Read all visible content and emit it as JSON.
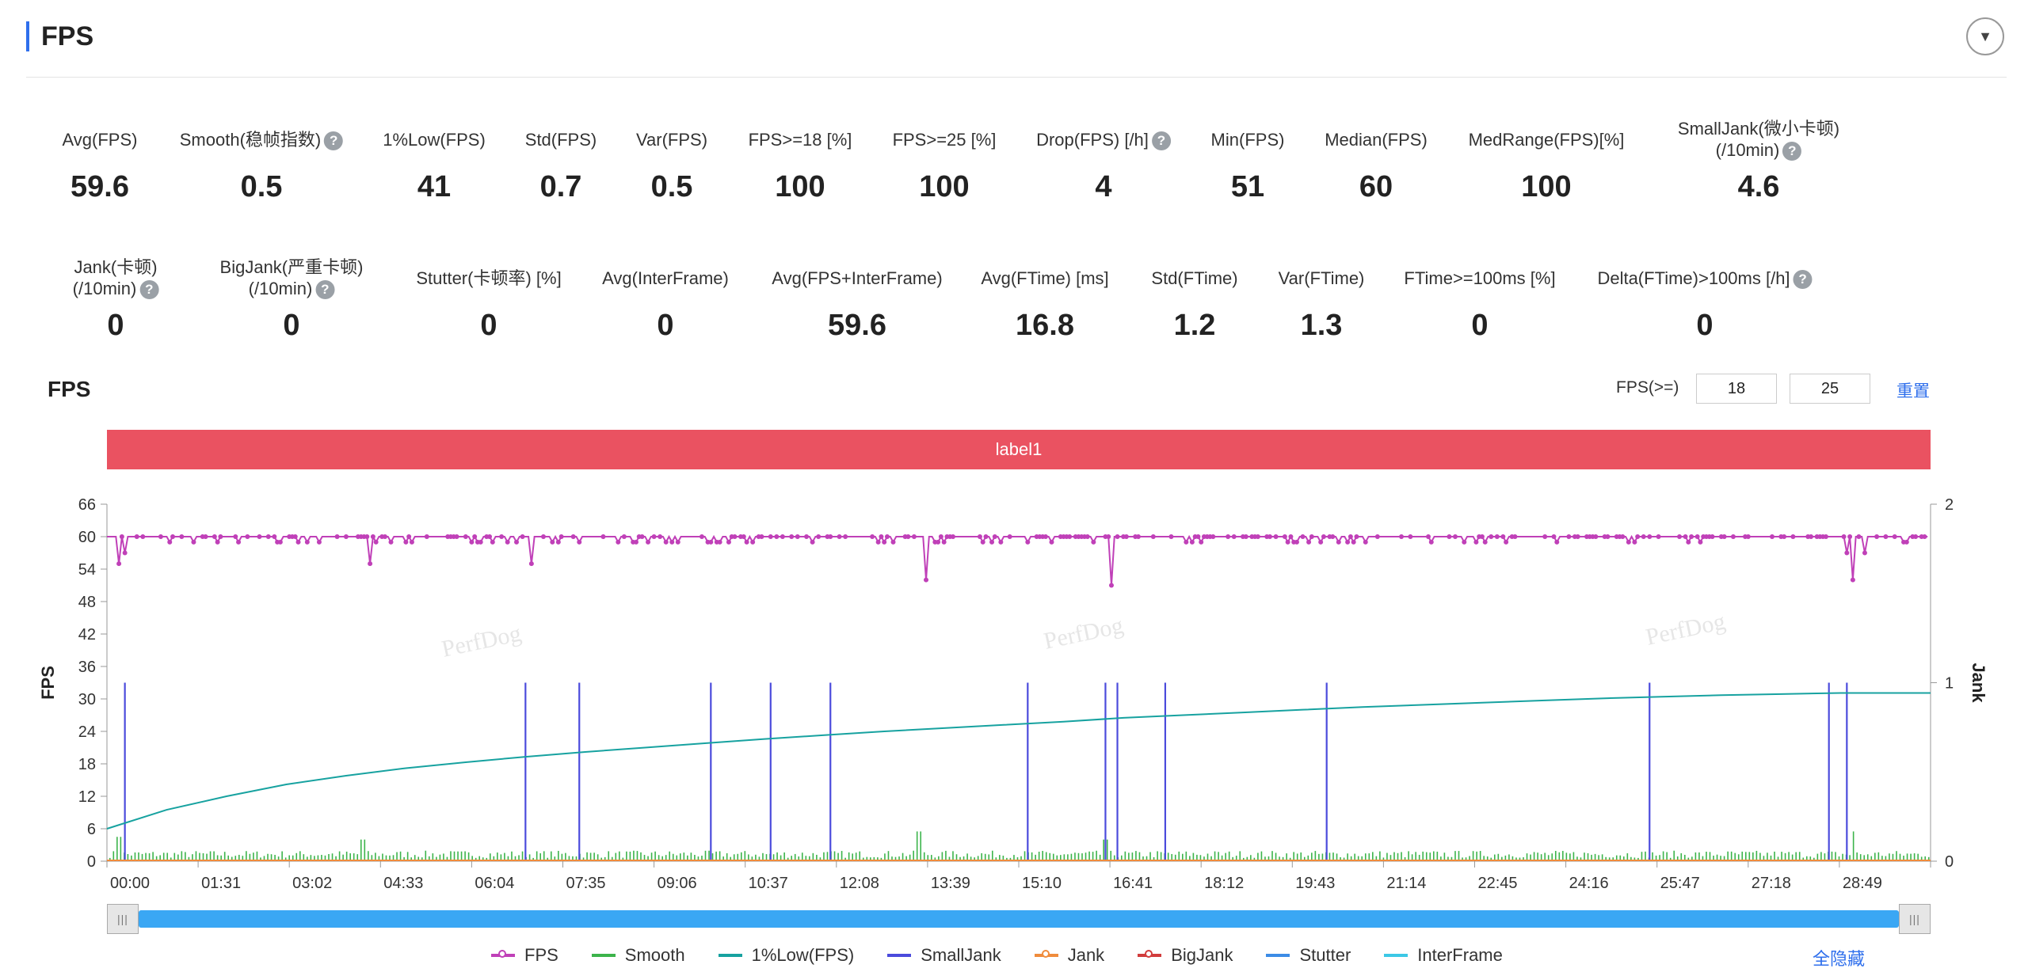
{
  "header": {
    "title": "FPS",
    "collapse_icon": "chevron-down-icon"
  },
  "metrics_row1": [
    {
      "label": "Avg(FPS)",
      "value": "59.6",
      "help": false
    },
    {
      "label": "Smooth(稳帧指数)",
      "value": "0.5",
      "help": true
    },
    {
      "label": "1%Low(FPS)",
      "value": "41",
      "help": false
    },
    {
      "label": "Std(FPS)",
      "value": "0.7",
      "help": false
    },
    {
      "label": "Var(FPS)",
      "value": "0.5",
      "help": false
    },
    {
      "label": "FPS>=18 [%]",
      "value": "100",
      "help": false
    },
    {
      "label": "FPS>=25 [%]",
      "value": "100",
      "help": false
    },
    {
      "label": "Drop(FPS) [/h]",
      "value": "4",
      "help": true
    },
    {
      "label": "Min(FPS)",
      "value": "51",
      "help": false
    },
    {
      "label": "Median(FPS)",
      "value": "60",
      "help": false
    },
    {
      "label": "MedRange(FPS)[%]",
      "value": "100",
      "help": false
    },
    {
      "label": "SmallJank(微小卡顿)",
      "label2": "(/10min)",
      "value": "4.6",
      "help": true
    }
  ],
  "metrics_row2": [
    {
      "label": "Jank(卡顿)",
      "label2": "(/10min)",
      "value": "0",
      "help": true
    },
    {
      "label": "BigJank(严重卡顿)",
      "label2": "(/10min)",
      "value": "0",
      "help": true
    },
    {
      "label": "Stutter(卡顿率) [%]",
      "value": "0",
      "help": false
    },
    {
      "label": "Avg(InterFrame)",
      "value": "0",
      "help": false
    },
    {
      "label": "Avg(FPS+InterFrame)",
      "value": "59.6",
      "help": false
    },
    {
      "label": "Avg(FTime) [ms]",
      "value": "16.8",
      "help": false
    },
    {
      "label": "Std(FTime)",
      "value": "1.2",
      "help": false
    },
    {
      "label": "Var(FTime)",
      "value": "1.3",
      "help": false
    },
    {
      "label": "FTime>=100ms [%]",
      "value": "0",
      "help": false
    },
    {
      "label": "Delta(FTime)>100ms [/h]",
      "value": "0",
      "help": true
    }
  ],
  "chart_controls": {
    "title": "FPS",
    "threshold_label": "FPS(>=)",
    "threshold_1": "18",
    "threshold_2": "25",
    "reset_label": "重置"
  },
  "label_band": "label1",
  "watermark": "PerfDog",
  "legend": {
    "items": [
      {
        "name": "FPS",
        "color": "#c040b8",
        "marker": true
      },
      {
        "name": "Smooth",
        "color": "#3cb44b",
        "marker": false
      },
      {
        "name": "1%Low(FPS)",
        "color": "#17a2a0",
        "marker": false
      },
      {
        "name": "SmallJank",
        "color": "#4b4bdc",
        "marker": false
      },
      {
        "name": "Jank",
        "color": "#f08c3c",
        "marker": true
      },
      {
        "name": "BigJank",
        "color": "#d23c3c",
        "marker": true
      },
      {
        "name": "Stutter",
        "color": "#3c8ce6",
        "marker": false
      },
      {
        "name": "InterFrame",
        "color": "#3cc8e6",
        "marker": false
      }
    ],
    "hide_all_label": "全隐藏"
  },
  "chart_data": {
    "type": "line",
    "xlabel": "",
    "ylabel": "FPS",
    "y2label": "Jank",
    "ylim": [
      0,
      66
    ],
    "y_ticks": [
      0,
      6,
      12,
      18,
      24,
      30,
      36,
      42,
      48,
      54,
      60,
      66
    ],
    "y2lim": [
      0,
      2
    ],
    "y2_ticks": [
      0,
      1,
      2
    ],
    "x_tick_labels": [
      "00:00",
      "01:31",
      "03:02",
      "04:33",
      "06:04",
      "07:35",
      "09:06",
      "10:37",
      "12:08",
      "13:39",
      "15:10",
      "16:41",
      "18:12",
      "19:43",
      "21:14",
      "22:45",
      "24:16",
      "25:47",
      "27:18",
      "28:49"
    ],
    "x_range_minutes": [
      0,
      30.5
    ],
    "series": [
      {
        "name": "FPS",
        "baseline": 60,
        "dips": [
          [
            0.2,
            55
          ],
          [
            0.3,
            57
          ],
          [
            4.4,
            55
          ],
          [
            7.1,
            55
          ],
          [
            13.7,
            52
          ],
          [
            16.8,
            51
          ],
          [
            29.1,
            57
          ],
          [
            29.2,
            52
          ],
          [
            29.4,
            57
          ]
        ]
      },
      {
        "name": "Smooth",
        "baseline": 1.5,
        "peaks": [
          [
            0.2,
            4.5
          ],
          [
            4.3,
            4
          ],
          [
            13.6,
            5.5
          ],
          [
            16.7,
            4
          ],
          [
            29.2,
            5.5
          ]
        ]
      },
      {
        "name": "1%Low(FPS)",
        "points": [
          [
            0,
            6
          ],
          [
            1,
            9.5
          ],
          [
            2,
            12
          ],
          [
            3,
            14.2
          ],
          [
            4,
            15.8
          ],
          [
            5,
            17.2
          ],
          [
            6,
            18.3
          ],
          [
            7,
            19.3
          ],
          [
            8,
            20.2
          ],
          [
            9,
            21
          ],
          [
            10,
            21.8
          ],
          [
            11,
            22.6
          ],
          [
            12,
            23.3
          ],
          [
            13,
            24
          ],
          [
            14,
            24.6
          ],
          [
            15,
            25.2
          ],
          [
            16,
            25.8
          ],
          [
            17,
            26.5
          ],
          [
            18,
            27
          ],
          [
            19,
            27.5
          ],
          [
            20,
            28
          ],
          [
            21,
            28.5
          ],
          [
            22,
            28.9
          ],
          [
            23,
            29.3
          ],
          [
            24,
            29.7
          ],
          [
            25,
            30.1
          ],
          [
            26,
            30.4
          ],
          [
            27,
            30.7
          ],
          [
            28,
            30.9
          ],
          [
            29,
            31.1
          ],
          [
            30.5,
            31.1
          ]
        ]
      },
      {
        "name": "SmallJank",
        "axis": "right",
        "events_minutes": [
          0.3,
          7.0,
          7.9,
          10.1,
          11.1,
          12.1,
          15.4,
          16.7,
          16.9,
          17.7,
          20.4,
          25.8,
          28.8,
          29.1
        ]
      },
      {
        "name": "Jank",
        "axis": "right",
        "values": []
      },
      {
        "name": "BigJank",
        "axis": "right",
        "values": []
      }
    ]
  }
}
